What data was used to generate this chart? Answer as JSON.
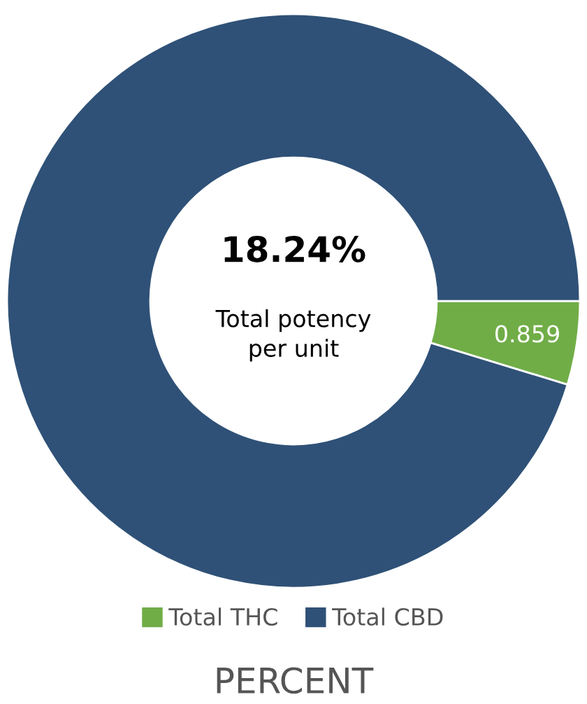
{
  "chart_data": {
    "type": "donut",
    "title": "PERCENT",
    "categories": [
      "Total THC",
      "Total CBD"
    ],
    "values": [
      0.859,
      17.381
    ],
    "colors": [
      "#70ad47",
      "#2f5177"
    ],
    "value_labels": [
      "0.859",
      null
    ],
    "annotations": [
      "18.24%",
      "Total potency\nper unit"
    ],
    "legend": "bottom"
  }
}
